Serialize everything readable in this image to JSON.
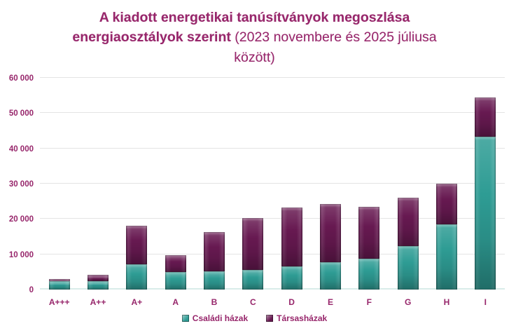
{
  "title": {
    "bold": "A kiadott energetikai tanúsítványok megoszlása energiaosztályok szerint",
    "regular": "(2023 novembere és 2025 júliusa között)"
  },
  "colors": {
    "text_accent": "#97266b",
    "gridline": "#e4e4e4",
    "baseline": "#d9ece9",
    "series_csaladi": "#2e9c94",
    "series_tarsas": "#671951"
  },
  "chart_data": {
    "type": "bar",
    "stacked": true,
    "title": "A kiadott energetikai tanúsítványok megoszlása energiaosztályok szerint (2023 novembere és 2025 júliusa között)",
    "xlabel": "",
    "ylabel": "",
    "ylim": [
      0,
      60000
    ],
    "grid": "horizontal",
    "legend_position": "bottom",
    "categories": [
      "A+++",
      "A++",
      "A+",
      "A",
      "B",
      "C",
      "D",
      "E",
      "F",
      "G",
      "H",
      "I"
    ],
    "series": [
      {
        "name": "Családi házak",
        "color": "#2e9c94",
        "values": [
          2300,
          2300,
          7100,
          4900,
          5200,
          5500,
          6500,
          7700,
          8800,
          12300,
          18400,
          43300
        ]
      },
      {
        "name": "Társasházak",
        "color": "#671951",
        "values": [
          700,
          1800,
          11000,
          4800,
          11100,
          14800,
          16700,
          16500,
          14600,
          13700,
          11600,
          11200
        ]
      }
    ],
    "stack_totals": [
      3000,
      4100,
      18100,
      9700,
      16300,
      20300,
      23200,
      24200,
      23400,
      26000,
      30000,
      54500
    ],
    "yticks": [
      {
        "value": 0,
        "label": "0"
      },
      {
        "value": 10000,
        "label": "10 000"
      },
      {
        "value": 20000,
        "label": "20 000"
      },
      {
        "value": 30000,
        "label": "30 000"
      },
      {
        "value": 40000,
        "label": "40 000"
      },
      {
        "value": 50000,
        "label": "50 000"
      },
      {
        "value": 60000,
        "label": "60 000"
      }
    ]
  }
}
